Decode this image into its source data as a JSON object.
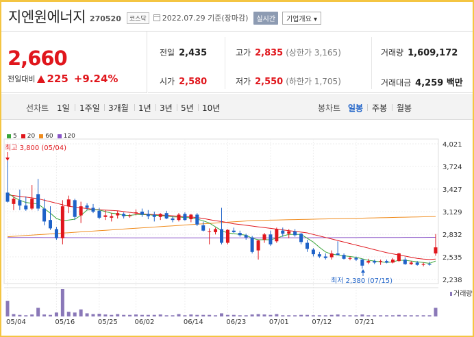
{
  "header": {
    "name": "지엔원에너지",
    "code": "270520",
    "market": "코스닥",
    "date": "2022.07.29 기준(장마감)",
    "realtime_btn": "실시간",
    "company_btn": "기업개요 ▾"
  },
  "price": {
    "current": "2,660",
    "change_label": "전일대비",
    "change": "225",
    "change_pct": "+9.24%"
  },
  "stats": {
    "prev_close_label": "전일",
    "prev_close": "2,435",
    "high_label": "고가",
    "high": "2,835",
    "upper_limit": "(상한가 3,165)",
    "volume_label": "거래량",
    "volume": "1,609,172",
    "open_label": "시가",
    "open": "2,580",
    "low_label": "저가",
    "low": "2,550",
    "lower_limit": "(하한가 1,705)",
    "amount_label": "거래대금",
    "amount": "4,259 백만"
  },
  "tabs": {
    "line_label": "선차트",
    "line_items": [
      "1일",
      "1주일",
      "3개월",
      "1년",
      "3년",
      "5년",
      "10년"
    ],
    "candle_label": "봉차트",
    "candle_items": [
      "일봉",
      "주봉",
      "월봉"
    ],
    "candle_active": "일봉"
  },
  "colors": {
    "up": "#e0161c",
    "down": "#1e62c8",
    "ma5": "#3aa63a",
    "ma20": "#e0161c",
    "ma60": "#f08c1e",
    "ma120": "#8a55c8"
  },
  "chart_data": {
    "type": "candlestick",
    "legend": [
      {
        "name": "5",
        "color": "#3aa63a"
      },
      {
        "name": "20",
        "color": "#e0161c"
      },
      {
        "name": "60",
        "color": "#f08c1e"
      },
      {
        "name": "120",
        "color": "#8a55c8"
      }
    ],
    "y_ticks": [
      4021,
      3724,
      3427,
      3129,
      2832,
      2535,
      2238
    ],
    "ylim": [
      2238,
      4021
    ],
    "x_ticks": [
      "05/04",
      "05/16",
      "05/25",
      "06/02",
      "06/14",
      "06/23",
      "07/01",
      "07/12",
      "07/21"
    ],
    "max_annotation": "최고 3,800 (05/04)",
    "min_annotation": "최저 2,380 (07/15)",
    "volume_label": "거래량",
    "candles": [
      {
        "o": 3380,
        "h": 3800,
        "l": 3250,
        "c": 3260
      },
      {
        "o": 3230,
        "h": 3330,
        "l": 3150,
        "c": 3300
      },
      {
        "o": 3280,
        "h": 3420,
        "l": 3150,
        "c": 3210
      },
      {
        "o": 3210,
        "h": 3330,
        "l": 3140,
        "c": 3160
      },
      {
        "o": 3170,
        "h": 3480,
        "l": 3150,
        "c": 3300
      },
      {
        "o": 3360,
        "h": 3560,
        "l": 3140,
        "c": 3170
      },
      {
        "o": 3170,
        "h": 3300,
        "l": 2950,
        "c": 3000
      },
      {
        "o": 3020,
        "h": 3200,
        "l": 2890,
        "c": 2910
      },
      {
        "o": 2900,
        "h": 2930,
        "l": 2760,
        "c": 2780
      },
      {
        "o": 2780,
        "h": 3280,
        "l": 2700,
        "c": 3200
      },
      {
        "o": 3200,
        "h": 3340,
        "l": 3110,
        "c": 3290
      },
      {
        "o": 3280,
        "h": 3300,
        "l": 3020,
        "c": 3060
      },
      {
        "o": 3080,
        "h": 3260,
        "l": 2980,
        "c": 3200
      },
      {
        "o": 3210,
        "h": 3240,
        "l": 3150,
        "c": 3180
      },
      {
        "o": 3180,
        "h": 3230,
        "l": 3110,
        "c": 3130
      },
      {
        "o": 3140,
        "h": 3180,
        "l": 3030,
        "c": 3050
      },
      {
        "o": 3060,
        "h": 3150,
        "l": 3020,
        "c": 3080
      },
      {
        "o": 3050,
        "h": 3110,
        "l": 3000,
        "c": 3070
      },
      {
        "o": 3080,
        "h": 3140,
        "l": 3040,
        "c": 3110
      },
      {
        "o": 3100,
        "h": 3120,
        "l": 3040,
        "c": 3070
      },
      {
        "o": 3080,
        "h": 3100,
        "l": 3050,
        "c": 3080
      },
      {
        "o": 3110,
        "h": 3160,
        "l": 3080,
        "c": 3120
      },
      {
        "o": 3130,
        "h": 3170,
        "l": 3060,
        "c": 3090
      },
      {
        "o": 3100,
        "h": 3150,
        "l": 3030,
        "c": 3070
      },
      {
        "o": 3090,
        "h": 3130,
        "l": 3000,
        "c": 3060
      },
      {
        "o": 3060,
        "h": 3110,
        "l": 3020,
        "c": 3100
      },
      {
        "o": 3110,
        "h": 3140,
        "l": 3030,
        "c": 3040
      },
      {
        "o": 3040,
        "h": 3070,
        "l": 2990,
        "c": 3020
      },
      {
        "o": 3020,
        "h": 3110,
        "l": 3000,
        "c": 3090
      },
      {
        "o": 3100,
        "h": 3120,
        "l": 3010,
        "c": 3020
      },
      {
        "o": 3030,
        "h": 3100,
        "l": 2990,
        "c": 3090
      },
      {
        "o": 3090,
        "h": 3110,
        "l": 2940,
        "c": 2960
      },
      {
        "o": 2950,
        "h": 3000,
        "l": 2870,
        "c": 2880
      },
      {
        "o": 2870,
        "h": 2910,
        "l": 2700,
        "c": 2870
      },
      {
        "o": 2860,
        "h": 2920,
        "l": 2830,
        "c": 2900
      },
      {
        "o": 2900,
        "h": 3180,
        "l": 2700,
        "c": 2720
      },
      {
        "o": 2720,
        "h": 2900,
        "l": 2700,
        "c": 2890
      },
      {
        "o": 2880,
        "h": 2920,
        "l": 2850,
        "c": 2860
      },
      {
        "o": 2850,
        "h": 2880,
        "l": 2800,
        "c": 2820
      },
      {
        "o": 2820,
        "h": 2840,
        "l": 2760,
        "c": 2790
      },
      {
        "o": 2790,
        "h": 2810,
        "l": 2580,
        "c": 2600
      },
      {
        "o": 2620,
        "h": 2760,
        "l": 2500,
        "c": 2750
      },
      {
        "o": 2760,
        "h": 2850,
        "l": 2720,
        "c": 2830
      },
      {
        "o": 2830,
        "h": 2880,
        "l": 2680,
        "c": 2700
      },
      {
        "o": 2740,
        "h": 2920,
        "l": 2720,
        "c": 2900
      },
      {
        "o": 2880,
        "h": 2920,
        "l": 2800,
        "c": 2840
      },
      {
        "o": 2840,
        "h": 2900,
        "l": 2780,
        "c": 2870
      },
      {
        "o": 2870,
        "h": 2900,
        "l": 2800,
        "c": 2820
      },
      {
        "o": 2840,
        "h": 2850,
        "l": 2700,
        "c": 2730
      },
      {
        "o": 2720,
        "h": 2760,
        "l": 2600,
        "c": 2640
      },
      {
        "o": 2630,
        "h": 2650,
        "l": 2540,
        "c": 2570
      },
      {
        "o": 2570,
        "h": 2600,
        "l": 2520,
        "c": 2540
      },
      {
        "o": 2540,
        "h": 2580,
        "l": 2500,
        "c": 2520
      },
      {
        "o": 2530,
        "h": 2620,
        "l": 2500,
        "c": 2580
      },
      {
        "o": 2580,
        "h": 2740,
        "l": 2560,
        "c": 2560
      },
      {
        "o": 2560,
        "h": 2580,
        "l": 2500,
        "c": 2510
      },
      {
        "o": 2510,
        "h": 2540,
        "l": 2490,
        "c": 2520
      },
      {
        "o": 2520,
        "h": 2540,
        "l": 2480,
        "c": 2500
      },
      {
        "o": 2500,
        "h": 2510,
        "l": 2380,
        "c": 2420
      },
      {
        "o": 2460,
        "h": 2510,
        "l": 2440,
        "c": 2480
      },
      {
        "o": 2480,
        "h": 2500,
        "l": 2440,
        "c": 2460
      },
      {
        "o": 2470,
        "h": 2500,
        "l": 2430,
        "c": 2480
      },
      {
        "o": 2480,
        "h": 2500,
        "l": 2450,
        "c": 2460
      },
      {
        "o": 2460,
        "h": 2520,
        "l": 2450,
        "c": 2500
      },
      {
        "o": 2480,
        "h": 2590,
        "l": 2470,
        "c": 2580
      },
      {
        "o": 2500,
        "h": 2530,
        "l": 2430,
        "c": 2440
      },
      {
        "o": 2440,
        "h": 2480,
        "l": 2430,
        "c": 2460
      },
      {
        "o": 2460,
        "h": 2480,
        "l": 2420,
        "c": 2430
      },
      {
        "o": 2430,
        "h": 2460,
        "l": 2410,
        "c": 2440
      },
      {
        "o": 2440,
        "h": 2470,
        "l": 2420,
        "c": 2430
      },
      {
        "o": 2580,
        "h": 2835,
        "l": 2550,
        "c": 2660
      }
    ],
    "volumes": [
      40,
      6,
      4,
      3,
      5,
      22,
      5,
      4,
      10,
      70,
      12,
      10,
      18,
      8,
      6,
      7,
      5,
      4,
      6,
      4,
      4,
      5,
      4,
      4,
      4,
      5,
      3,
      3,
      6,
      3,
      5,
      4,
      4,
      4,
      3,
      8,
      4,
      4,
      3,
      3,
      5,
      6,
      5,
      4,
      6,
      3,
      3,
      3,
      4,
      4,
      3,
      3,
      3,
      4,
      5,
      3,
      3,
      3,
      5,
      3,
      3,
      3,
      3,
      3,
      4,
      3,
      3,
      3,
      3,
      3,
      22
    ],
    "ma5": [
      3380,
      3320,
      3280,
      3250,
      3240,
      3230,
      3170,
      3110,
      3040,
      3010,
      3020,
      3030,
      3080,
      3150,
      3160,
      3150,
      3130,
      3110,
      3100,
      3080,
      3080,
      3090,
      3090,
      3090,
      3080,
      3080,
      3070,
      3060,
      3060,
      3050,
      3050,
      3030,
      3010,
      2980,
      2930,
      2880,
      2850,
      2840,
      2830,
      2820,
      2780,
      2760,
      2760,
      2760,
      2780,
      2810,
      2830,
      2830,
      2830,
      2780,
      2730,
      2660,
      2600,
      2570,
      2560,
      2550,
      2540,
      2530,
      2510,
      2490,
      2480,
      2470,
      2460,
      2470,
      2490,
      2490,
      2480,
      2470,
      2460,
      2450,
      2480
    ],
    "ma20": [
      3350,
      3340,
      3330,
      3320,
      3310,
      3300,
      3280,
      3260,
      3240,
      3220,
      3200,
      3190,
      3180,
      3170,
      3160,
      3155,
      3150,
      3145,
      3140,
      3130,
      3120,
      3110,
      3100,
      3095,
      3090,
      3085,
      3080,
      3075,
      3070,
      3065,
      3060,
      3050,
      3040,
      3025,
      3010,
      3000,
      2985,
      2970,
      2960,
      2950,
      2940,
      2930,
      2920,
      2910,
      2900,
      2890,
      2880,
      2870,
      2860,
      2850,
      2830,
      2810,
      2790,
      2770,
      2750,
      2730,
      2710,
      2690,
      2670,
      2650,
      2630,
      2610,
      2590,
      2575,
      2560,
      2545,
      2530,
      2515,
      2505,
      2500,
      2505
    ]
  }
}
